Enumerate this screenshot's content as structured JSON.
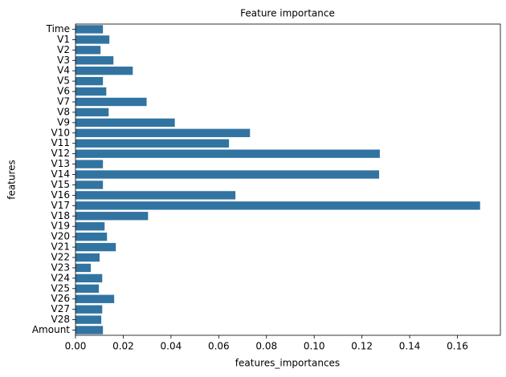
{
  "chart_data": {
    "type": "barh",
    "title": "Feature importance",
    "x_label": "features_importances",
    "y_label": "features",
    "categories": [
      "Time",
      "V1",
      "V2",
      "V3",
      "V4",
      "V5",
      "V6",
      "V7",
      "V8",
      "V9",
      "V10",
      "V11",
      "V12",
      "V13",
      "V14",
      "V15",
      "V16",
      "V17",
      "V18",
      "V19",
      "V20",
      "V21",
      "V22",
      "V23",
      "V24",
      "V25",
      "V26",
      "V27",
      "V28",
      "Amount"
    ],
    "values": [
      0.0115,
      0.0142,
      0.0105,
      0.0159,
      0.024,
      0.0115,
      0.0129,
      0.0298,
      0.0139,
      0.0416,
      0.0731,
      0.0643,
      0.1275,
      0.0115,
      0.1272,
      0.0115,
      0.067,
      0.1695,
      0.0304,
      0.0122,
      0.0132,
      0.0169,
      0.0101,
      0.0064,
      0.0112,
      0.0098,
      0.0162,
      0.0112,
      0.0108,
      0.0115
    ],
    "color": "#3274a1",
    "xlim": [
      0,
      0.178
    ],
    "xticks": [
      {
        "value": 0,
        "label": "0.00"
      },
      0.02,
      0.04,
      0.06,
      0.08,
      {
        "value": 0.1,
        "label": "0.10"
      },
      0.12,
      0.14,
      0.16
    ],
    "grid": false
  }
}
